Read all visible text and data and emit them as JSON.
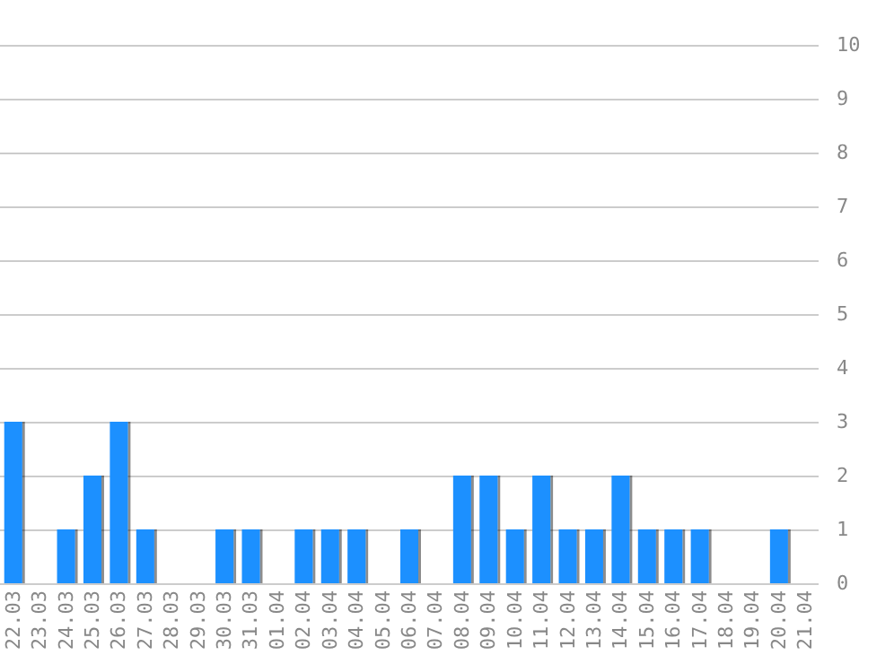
{
  "chart_data": {
    "type": "bar",
    "categories": [
      "22.03",
      "23.03",
      "24.03",
      "25.03",
      "26.03",
      "27.03",
      "28.03",
      "29.03",
      "30.03",
      "31.03",
      "01.04",
      "02.04",
      "03.04",
      "04.04",
      "05.04",
      "06.04",
      "07.04",
      "08.04",
      "09.04",
      "10.04",
      "11.04",
      "12.04",
      "13.04",
      "14.04",
      "15.04",
      "16.04",
      "17.04",
      "18.04",
      "19.04",
      "20.04",
      "21.04"
    ],
    "values": [
      3,
      0,
      1,
      2,
      3,
      1,
      0,
      0,
      1,
      1,
      0,
      1,
      1,
      1,
      0,
      1,
      0,
      2,
      2,
      1,
      2,
      1,
      1,
      2,
      1,
      1,
      1,
      0,
      0,
      1,
      0
    ],
    "color": "#1e90ff",
    "ylim": [
      0,
      10
    ],
    "yticks": [
      0,
      1,
      2,
      3,
      4,
      5,
      6,
      7,
      8,
      9,
      10
    ],
    "grid": "y"
  }
}
